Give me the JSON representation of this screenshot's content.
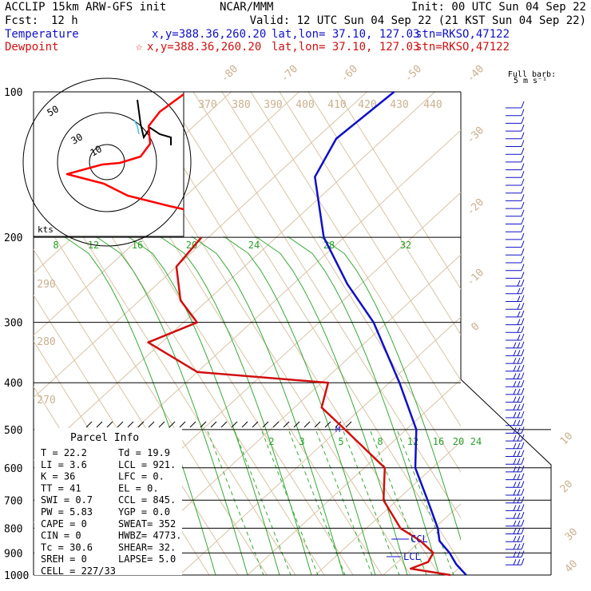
{
  "header": {
    "model": "ACCLIP 15km ARW-GFS init",
    "center": "NCAR/MMM",
    "init": "Init: 00 UTC Sun 04 Sep 22",
    "fcst_label": "Fcst:",
    "fcst_value": "12 h",
    "valid": "Valid: 12 UTC Sun 04 Sep 22 (21 KST Sun 04 Sep 22)",
    "temp_label": "Temperature",
    "temp_xy": "x,y=388.36,260.20",
    "temp_latlon": "lat,lon= 37.10, 127.03",
    "temp_stn": "stn=RKSO,47122",
    "dew_label": "Dewpoint",
    "dew_xy": "x,y=388.36,260.20",
    "dew_latlon": "lat,lon= 37.10, 127.03",
    "dew_stn": "stn=RKSO,47122",
    "dew_marker": "☆"
  },
  "barb_legend": {
    "line1": "Full barb:",
    "line2": "5 m s⁻¹"
  },
  "hodograph": {
    "unit": "kts",
    "ring_labels": [
      "10",
      "30",
      "50"
    ],
    "colors": {
      "ring": "#000000",
      "trace": "#ff0000",
      "inner": "#000000",
      "cyan": "#40c0e0"
    }
  },
  "parcel": {
    "title": "Parcel Info",
    "rows": [
      [
        "T   =   22.2",
        "Td =  19.9"
      ],
      [
        "LI  =    3.6",
        "LCL =  921."
      ],
      [
        "K   =     36",
        "LFC =    0."
      ],
      [
        "TT  =     41",
        "EL  =    0."
      ],
      [
        "SWI =    0.7",
        "CCL =  845."
      ],
      [
        "PW  =   5.83",
        "YGP =  0.0"
      ],
      [
        "CAPE =     0",
        "SWEAT=  352"
      ],
      [
        "CIN  =     0",
        "HWBZ= 4773."
      ],
      [
        "Tc  =   30.6",
        "SHEAR=  32."
      ],
      [
        "SREH =     0",
        "LAPSE=  5.0"
      ],
      [
        "CELL = 227/33",
        ""
      ]
    ]
  },
  "chart_data": {
    "type": "line",
    "diagram": "skew-T log-p",
    "y_axis": {
      "scale": "log",
      "ylim": [
        1000,
        100
      ],
      "tick_labels": [
        "100",
        "200",
        "300",
        "400",
        "500",
        "600",
        "700",
        "800",
        "900",
        "1000"
      ]
    },
    "isotherm_labels": [
      "-80",
      "-70",
      "-60",
      "-50",
      "-40",
      "-30",
      "-20",
      "-10",
      "0",
      "10",
      "20",
      "30",
      "40"
    ],
    "theta_labels": [
      "370",
      "380",
      "390",
      "400",
      "410",
      "420",
      "430",
      "440",
      "290",
      "280",
      "270"
    ],
    "mixing_ratio_upper": [
      "8",
      "12",
      "16",
      "20",
      "24",
      "28",
      "32"
    ],
    "mixing_ratio_lower": [
      "2",
      "3",
      "5",
      "8",
      "12",
      "16",
      "20",
      "24"
    ],
    "annotations": [
      "CCL",
      "LCL",
      "M"
    ],
    "series": [
      {
        "name": "Temperature",
        "color": "#1010c8",
        "points": [
          [
            1000,
            22.2
          ],
          [
            950,
            19.0
          ],
          [
            900,
            16.2
          ],
          [
            850,
            12.8
          ],
          [
            800,
            10.5
          ],
          [
            700,
            4.5
          ],
          [
            600,
            -2.5
          ],
          [
            500,
            -8.5
          ],
          [
            400,
            -18.5
          ],
          [
            300,
            -32.0
          ],
          [
            250,
            -42.0
          ],
          [
            200,
            -53.0
          ],
          [
            150,
            -64.0
          ],
          [
            125,
            -67.0
          ],
          [
            100,
            -66.0
          ]
        ]
      },
      {
        "name": "Dewpoint",
        "color": "#d01010",
        "points": [
          [
            1000,
            19.9
          ],
          [
            970,
            13.0
          ],
          [
            940,
            14.5
          ],
          [
            900,
            13.8
          ],
          [
            850,
            10.0
          ],
          [
            800,
            5.0
          ],
          [
            700,
            -2.0
          ],
          [
            600,
            -7.0
          ],
          [
            500,
            -19.0
          ],
          [
            450,
            -26.0
          ],
          [
            400,
            -29.0
          ],
          [
            380,
            -50.0
          ],
          [
            330,
            -62.0
          ],
          [
            300,
            -58.0
          ],
          [
            270,
            -64.0
          ],
          [
            230,
            -70.0
          ],
          [
            200,
            -71.0
          ]
        ]
      }
    ],
    "wind_barbs_note": "right-side column of wind barbs, 100–1000 hPa"
  }
}
